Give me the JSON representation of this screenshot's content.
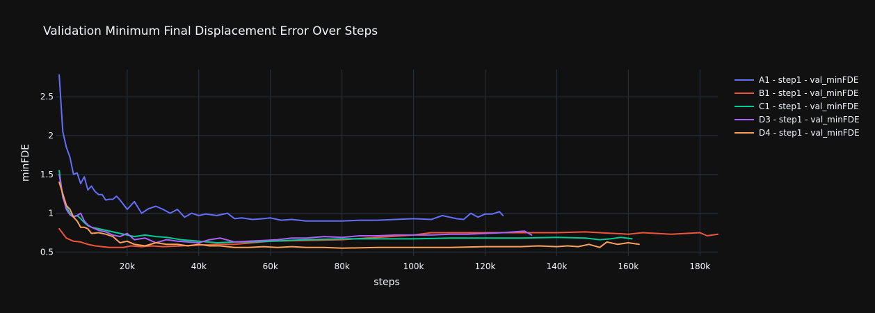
{
  "chart_data": {
    "type": "line",
    "title": "Validation Minimum Final Displacement Error Over Steps",
    "xlabel": "steps",
    "ylabel": "minFDE",
    "xlim": [
      0,
      185000
    ],
    "ylim": [
      0.45,
      2.85
    ],
    "x_ticks": [
      20000,
      40000,
      60000,
      80000,
      100000,
      120000,
      140000,
      160000,
      180000
    ],
    "x_tick_labels": [
      "20k",
      "40k",
      "60k",
      "80k",
      "100k",
      "120k",
      "140k",
      "160k",
      "180k"
    ],
    "y_ticks": [
      0.5,
      1,
      1.5,
      2,
      2.5
    ],
    "y_tick_labels": [
      "0.5",
      "1",
      "1.5",
      "2",
      "2.5"
    ],
    "grid": true,
    "legend_position": "right",
    "series": [
      {
        "name": "A1 - step1 - val_minFDE",
        "color": "#636efa",
        "x": [
          1000,
          2000,
          3000,
          4000,
          5000,
          6000,
          7000,
          8000,
          9000,
          10000,
          11000,
          12000,
          13000,
          14000,
          15000,
          16000,
          17000,
          18000,
          20000,
          22000,
          24000,
          26000,
          28000,
          30000,
          32000,
          34000,
          36000,
          38000,
          40000,
          42000,
          45000,
          48000,
          50000,
          52000,
          55000,
          58000,
          60000,
          63000,
          66000,
          70000,
          75000,
          80000,
          85000,
          90000,
          95000,
          100000,
          105000,
          108000,
          112000,
          114000,
          116000,
          118000,
          120000,
          122000,
          124000,
          125000
        ],
        "y": [
          2.78,
          2.05,
          1.85,
          1.72,
          1.5,
          1.52,
          1.38,
          1.47,
          1.3,
          1.35,
          1.28,
          1.24,
          1.24,
          1.17,
          1.18,
          1.18,
          1.22,
          1.17,
          1.05,
          1.15,
          1.0,
          1.06,
          1.09,
          1.05,
          1.0,
          1.05,
          0.95,
          1.0,
          0.97,
          0.99,
          0.97,
          1.0,
          0.93,
          0.94,
          0.92,
          0.93,
          0.94,
          0.91,
          0.92,
          0.9,
          0.9,
          0.9,
          0.91,
          0.91,
          0.92,
          0.93,
          0.92,
          0.97,
          0.93,
          0.92,
          1.0,
          0.95,
          0.99,
          0.99,
          1.02,
          0.97
        ]
      },
      {
        "name": "B1 - step1 - val_minFDE",
        "color": "#ef553b",
        "x": [
          1000,
          3000,
          5000,
          7000,
          9000,
          11000,
          13000,
          15000,
          17000,
          19000,
          21000,
          24000,
          27000,
          30000,
          35000,
          40000,
          45000,
          50000,
          55000,
          60000,
          70000,
          80000,
          90000,
          100000,
          105000,
          110000,
          120000,
          130000,
          140000,
          148000,
          152000,
          156000,
          160000,
          164000,
          168000,
          172000,
          176000,
          180000,
          182000,
          185000
        ],
        "y": [
          0.8,
          0.68,
          0.64,
          0.63,
          0.6,
          0.58,
          0.57,
          0.56,
          0.56,
          0.56,
          0.58,
          0.57,
          0.58,
          0.57,
          0.58,
          0.59,
          0.6,
          0.6,
          0.62,
          0.64,
          0.65,
          0.66,
          0.69,
          0.72,
          0.75,
          0.75,
          0.75,
          0.75,
          0.75,
          0.76,
          0.75,
          0.74,
          0.73,
          0.75,
          0.74,
          0.73,
          0.74,
          0.75,
          0.71,
          0.73
        ]
      },
      {
        "name": "C1 - step1 - val_minFDE",
        "color": "#00cc96",
        "x": [
          1000,
          2000,
          3000,
          4000,
          5000,
          6000,
          7000,
          8000,
          9000,
          10000,
          12000,
          14000,
          16000,
          18000,
          20000,
          22000,
          25000,
          28000,
          31000,
          35000,
          40000,
          45000,
          50000,
          55000,
          60000,
          70000,
          80000,
          90000,
          100000,
          110000,
          120000,
          130000,
          140000,
          148000,
          152000,
          155000,
          158000,
          161000
        ],
        "y": [
          1.55,
          1.2,
          1.08,
          1.0,
          0.96,
          0.97,
          0.93,
          0.88,
          0.84,
          0.82,
          0.8,
          0.78,
          0.76,
          0.74,
          0.72,
          0.7,
          0.72,
          0.7,
          0.69,
          0.66,
          0.64,
          0.62,
          0.63,
          0.63,
          0.64,
          0.66,
          0.67,
          0.67,
          0.67,
          0.68,
          0.68,
          0.68,
          0.69,
          0.68,
          0.66,
          0.67,
          0.69,
          0.67
        ]
      },
      {
        "name": "D3 - step1 - val_minFDE",
        "color": "#ab63fa",
        "x": [
          1000,
          2000,
          3000,
          4000,
          5000,
          6000,
          7000,
          8000,
          9000,
          10000,
          12000,
          14000,
          16000,
          18000,
          20000,
          22000,
          25000,
          28000,
          31000,
          34000,
          37000,
          40000,
          43000,
          46000,
          50000,
          54000,
          58000,
          62000,
          66000,
          70000,
          75000,
          80000,
          85000,
          90000,
          95000,
          100000,
          105000,
          110000,
          115000,
          120000,
          125000,
          128000,
          131000,
          133000
        ],
        "y": [
          1.5,
          1.22,
          1.05,
          0.98,
          0.95,
          0.97,
          1.0,
          0.9,
          0.85,
          0.82,
          0.78,
          0.76,
          0.72,
          0.7,
          0.74,
          0.66,
          0.68,
          0.62,
          0.66,
          0.64,
          0.63,
          0.62,
          0.66,
          0.68,
          0.63,
          0.64,
          0.65,
          0.66,
          0.68,
          0.68,
          0.7,
          0.69,
          0.71,
          0.71,
          0.72,
          0.72,
          0.72,
          0.73,
          0.73,
          0.74,
          0.75,
          0.76,
          0.77,
          0.72
        ]
      },
      {
        "name": "D4 - step1 - val_minFDE",
        "color": "#ffa15a",
        "x": [
          1000,
          2000,
          3000,
          4000,
          5000,
          6000,
          7000,
          8000,
          9000,
          10000,
          12000,
          14000,
          16000,
          18000,
          20000,
          22000,
          25000,
          28000,
          31000,
          34000,
          37000,
          40000,
          43000,
          46000,
          50000,
          54000,
          58000,
          62000,
          66000,
          70000,
          75000,
          80000,
          90000,
          100000,
          110000,
          120000,
          125000,
          130000,
          135000,
          140000,
          143000,
          146000,
          149000,
          152000,
          154000,
          157000,
          160000,
          163000
        ],
        "y": [
          1.4,
          1.25,
          1.1,
          1.05,
          0.95,
          0.9,
          0.82,
          0.82,
          0.8,
          0.74,
          0.75,
          0.73,
          0.7,
          0.62,
          0.64,
          0.6,
          0.58,
          0.62,
          0.6,
          0.6,
          0.58,
          0.6,
          0.58,
          0.58,
          0.56,
          0.56,
          0.57,
          0.56,
          0.57,
          0.56,
          0.56,
          0.55,
          0.56,
          0.56,
          0.56,
          0.57,
          0.57,
          0.57,
          0.58,
          0.57,
          0.58,
          0.57,
          0.6,
          0.56,
          0.63,
          0.6,
          0.62,
          0.6
        ]
      }
    ]
  }
}
